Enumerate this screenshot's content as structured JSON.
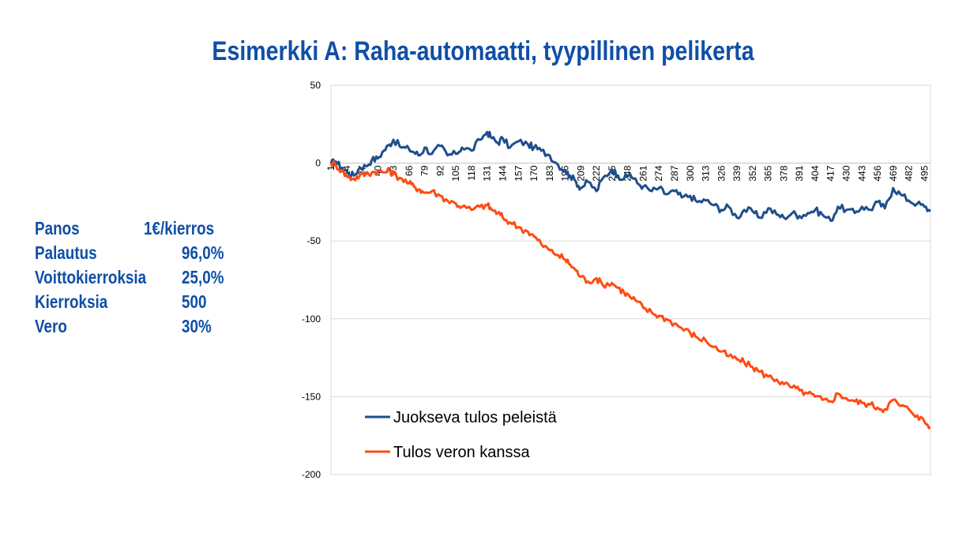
{
  "slide": {
    "title": "Esimerkki A:  Raha-automaatti, tyypillinen pelikerta"
  },
  "parameters": [
    {
      "label": "Panos",
      "value": "1€/kierros"
    },
    {
      "label": "Palautus",
      "value": "96,0%"
    },
    {
      "label": "Voittokierroksia",
      "value": "25,0%"
    },
    {
      "label": "Kierroksia",
      "value": "500"
    },
    {
      "label": "Vero",
      "value": "30%"
    }
  ],
  "colors": {
    "text_accent": "#0F4FA8",
    "series_running": "#1F4E8C",
    "series_tax": "#FF4B12",
    "gridline": "#D9D9D9"
  },
  "chart_data": {
    "type": "line",
    "title": "",
    "xlabel": "",
    "ylabel": "",
    "ylim": [
      -200,
      50
    ],
    "yticks": [
      50,
      0,
      -50,
      -100,
      -150,
      -200
    ],
    "xlim": [
      1,
      500
    ],
    "xtick_labels": [
      "1",
      "14",
      "27",
      "40",
      "53",
      "66",
      "79",
      "92",
      "105",
      "118",
      "131",
      "144",
      "157",
      "170",
      "183",
      "196",
      "209",
      "222",
      "235",
      "248",
      "261",
      "274",
      "287",
      "300",
      "313",
      "326",
      "339",
      "352",
      "365",
      "378",
      "391",
      "404",
      "417",
      "430",
      "443",
      "456",
      "469",
      "482",
      "495"
    ],
    "grid": true,
    "legend_position": "bottom-left",
    "series": [
      {
        "name": "Juokseva tulos peleistä",
        "x": [
          1,
          5,
          10,
          15,
          20,
          25,
          30,
          35,
          40,
          45,
          50,
          53,
          60,
          66,
          70,
          75,
          79,
          85,
          92,
          98,
          105,
          110,
          118,
          125,
          131,
          135,
          140,
          144,
          150,
          157,
          165,
          170,
          176,
          183,
          190,
          196,
          200,
          205,
          209,
          215,
          222,
          227,
          235,
          240,
          245,
          250,
          256,
          261,
          268,
          274,
          280,
          287,
          293,
          300,
          306,
          313,
          320,
          326,
          332,
          339,
          345,
          352,
          358,
          365,
          372,
          378,
          385,
          391,
          398,
          404,
          410,
          417,
          423,
          430,
          437,
          443,
          450,
          456,
          462,
          469,
          475,
          482,
          489,
          495,
          500
        ],
        "y": [
          0,
          1,
          -3,
          -6,
          -8,
          -3,
          -2,
          2,
          3,
          8,
          12,
          15,
          10,
          9,
          7,
          5,
          10,
          6,
          11,
          5,
          6,
          10,
          8,
          15,
          20,
          16,
          13,
          16,
          10,
          14,
          12,
          10,
          8,
          5,
          -1,
          -5,
          -8,
          -12,
          -16,
          -12,
          -18,
          -10,
          -4,
          -8,
          -10,
          -7,
          -13,
          -15,
          -18,
          -16,
          -20,
          -18,
          -22,
          -21,
          -25,
          -24,
          -27,
          -30,
          -28,
          -35,
          -30,
          -31,
          -35,
          -29,
          -33,
          -35,
          -32,
          -34,
          -32,
          -30,
          -33,
          -37,
          -28,
          -30,
          -32,
          -28,
          -30,
          -25,
          -29,
          -16,
          -20,
          -24,
          -26,
          -28,
          -31
        ]
      },
      {
        "name": "Tulos veron kanssa",
        "x": [
          1,
          5,
          10,
          15,
          20,
          25,
          30,
          35,
          40,
          45,
          50,
          53,
          60,
          66,
          70,
          75,
          79,
          85,
          92,
          98,
          105,
          110,
          118,
          125,
          131,
          135,
          140,
          144,
          150,
          157,
          165,
          170,
          176,
          183,
          190,
          196,
          200,
          205,
          209,
          215,
          222,
          227,
          235,
          240,
          245,
          250,
          256,
          261,
          268,
          274,
          280,
          287,
          293,
          300,
          306,
          313,
          320,
          326,
          332,
          339,
          345,
          352,
          358,
          365,
          372,
          378,
          385,
          391,
          398,
          404,
          410,
          417,
          423,
          430,
          437,
          443,
          450,
          456,
          462,
          469,
          475,
          482,
          489,
          495,
          500
        ],
        "y": [
          0,
          -1,
          -5,
          -9,
          -10,
          -8,
          -7,
          -6,
          -5,
          -6,
          -5,
          -7,
          -10,
          -13,
          -15,
          -17,
          -19,
          -18,
          -21,
          -24,
          -26,
          -28,
          -30,
          -28,
          -27,
          -30,
          -32,
          -35,
          -38,
          -41,
          -44,
          -47,
          -52,
          -56,
          -59,
          -62,
          -65,
          -69,
          -73,
          -76,
          -74,
          -78,
          -77,
          -80,
          -83,
          -86,
          -89,
          -93,
          -96,
          -98,
          -100,
          -103,
          -106,
          -109,
          -112,
          -114,
          -118,
          -121,
          -124,
          -126,
          -128,
          -131,
          -134,
          -137,
          -139,
          -142,
          -144,
          -146,
          -148,
          -150,
          -152,
          -153,
          -148,
          -151,
          -153,
          -154,
          -155,
          -157,
          -158,
          -152,
          -156,
          -158,
          -162,
          -166,
          -170
        ]
      }
    ]
  }
}
